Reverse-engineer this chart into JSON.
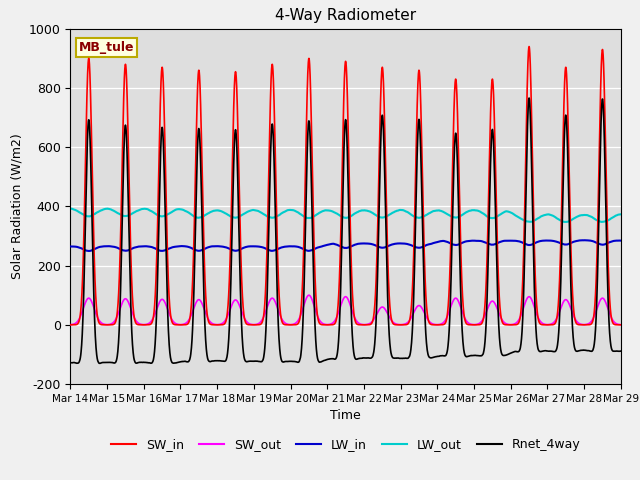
{
  "title": "4-Way Radiometer",
  "xlabel": "Time",
  "ylabel": "Solar Radiation (W/m2)",
  "ylim": [
    -200,
    1000
  ],
  "background_color": "#dedede",
  "station_label": "MB_tule",
  "x_tick_labels": [
    "Mar 14",
    "Mar 15",
    "Mar 16",
    "Mar 17",
    "Mar 18",
    "Mar 19",
    "Mar 20",
    "Mar 21",
    "Mar 22",
    "Mar 23",
    "Mar 24",
    "Mar 25",
    "Mar 26",
    "Mar 27",
    "Mar 28",
    "Mar 29"
  ],
  "series": {
    "SW_in": {
      "color": "#ff0000",
      "lw": 1.2
    },
    "SW_out": {
      "color": "#ff00ff",
      "lw": 1.2
    },
    "LW_in": {
      "color": "#0000cc",
      "lw": 1.5
    },
    "LW_out": {
      "color": "#00cccc",
      "lw": 1.5
    },
    "Rnet_4way": {
      "color": "#000000",
      "lw": 1.2
    }
  },
  "n_days": 15,
  "points_per_day": 480
}
